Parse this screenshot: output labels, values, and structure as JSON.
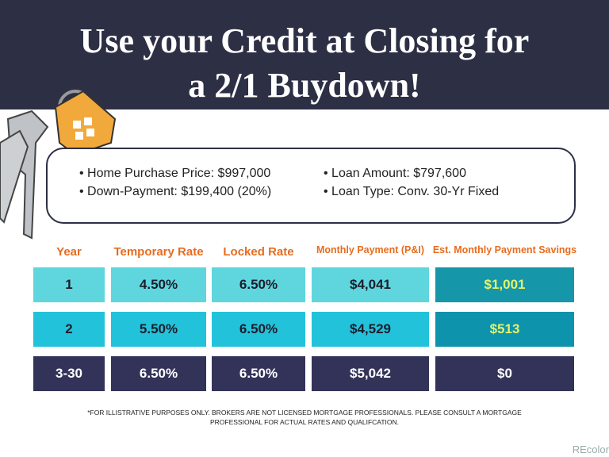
{
  "header": {
    "title_lines": [
      "Use your Credit at Closing for",
      "a 2/1 Buydown!"
    ]
  },
  "info": {
    "left": [
      "Home Purchase Price: $997,000",
      "Down-Payment: $199,400 (20%)"
    ],
    "right": [
      "Loan Amount: $797,600",
      "Loan Type: Conv. 30-Yr Fixed"
    ]
  },
  "table": {
    "headers": [
      "Year",
      "Temporary Rate",
      "Locked Rate",
      "Monthly Payment (P&I)",
      "Est. Monthly Payment Savings"
    ],
    "rows": [
      [
        "1",
        "4.50%",
        "6.50%",
        "$4,041",
        "$1,001"
      ],
      [
        "2",
        "5.50%",
        "6.50%",
        "$4,529",
        "$513"
      ],
      [
        "3-30",
        "6.50%",
        "6.50%",
        "$5,042",
        "$0"
      ]
    ]
  },
  "footnote": [
    "*FOR ILLISTRATIVE PURPOSES ONLY. BROKERS ARE NOT LICENSED MORTGAGE PROFESSIONALS. PLEASE CONSULT A MORTGAGE",
    "PROFESSIONAL FOR ACTUAL RATES AND QUALIFCATION."
  ],
  "watermark": "REcolor"
}
